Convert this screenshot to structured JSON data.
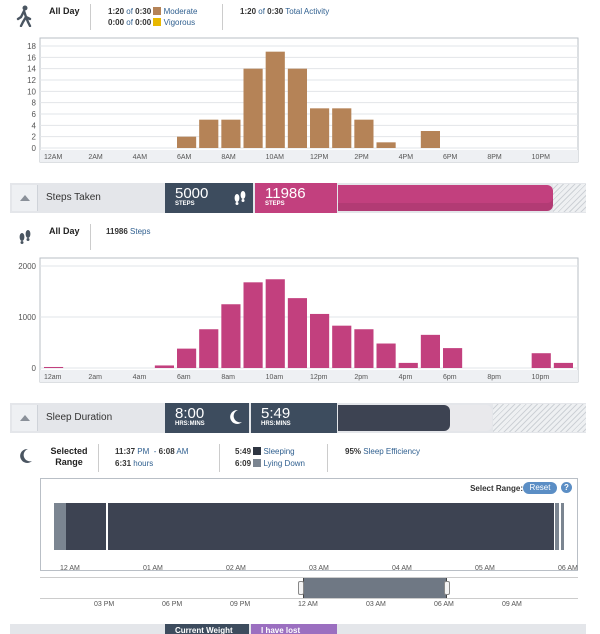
{
  "activity": {
    "label": "All Day",
    "moderate": {
      "value": "1:20",
      "of": "of",
      "goal": "0:30",
      "label": "Moderate",
      "color": "#b58357"
    },
    "vigorous": {
      "value": "0:00",
      "of": "of",
      "goal": "0:00",
      "label": "Vigorous",
      "color": "#e8b800"
    },
    "total": {
      "value": "1:20",
      "of": "of",
      "goal": "0:30",
      "label": "Total Activity"
    }
  },
  "steps_header": {
    "title": "Steps Taken",
    "goal_value": "5000",
    "goal_unit": "STEPS",
    "actual_value": "11986",
    "actual_unit": "STEPS",
    "progress_fraction": 1.0,
    "accent": "#c2407e"
  },
  "steps_summary": {
    "label": "All Day",
    "value": "11986",
    "unit": "Steps"
  },
  "sleep_header": {
    "title": "Sleep Duration",
    "goal_value": "8:00",
    "goal_unit": "HRS:MINS",
    "actual_value": "5:49",
    "actual_unit": "HRS:MINS",
    "progress_fraction": 0.727
  },
  "sleep_summary": {
    "label": "Selected Range",
    "start": "11:37",
    "start_ampm": "PM",
    "dash": "-",
    "end": "6:08",
    "end_ampm": "AM",
    "duration": "6:31",
    "duration_unit": "hours",
    "sleeping_value": "5:49",
    "sleeping_label": "Sleeping",
    "lying_value": "6:09",
    "lying_label": "Lying Down",
    "efficiency_value": "95%",
    "efficiency_label": "Sleep Efficiency"
  },
  "sleep_chart": {
    "select_range_label": "Select Range:",
    "reset_label": "Reset",
    "help_label": "?",
    "x_labels": [
      "12 AM",
      "01 AM",
      "02 AM",
      "03 AM",
      "04 AM",
      "05 AM",
      "06 AM"
    ],
    "nav_labels": [
      "03 PM",
      "06 PM",
      "09 PM",
      "12 AM",
      "03 AM",
      "06 AM",
      "09 AM"
    ]
  },
  "bottom": {
    "current_weight": "Current Weight",
    "lost": "I have lost"
  },
  "chart_data": [
    {
      "type": "bar",
      "title": "",
      "categories": [
        "12AM",
        "1AM",
        "2AM",
        "3AM",
        "4AM",
        "5AM",
        "6AM",
        "7AM",
        "8AM",
        "9AM",
        "10AM",
        "11AM",
        "12PM",
        "1PM",
        "2PM",
        "3PM",
        "4PM",
        "5PM",
        "6PM",
        "7PM",
        "8PM",
        "9PM",
        "10PM",
        "11PM"
      ],
      "x_tick_labels": [
        "12AM",
        "2AM",
        "4AM",
        "6AM",
        "8AM",
        "10AM",
        "12PM",
        "2PM",
        "4PM",
        "6PM",
        "8PM",
        "10PM"
      ],
      "y_ticks": [
        0,
        2,
        4,
        6,
        8,
        10,
        12,
        14,
        16,
        18
      ],
      "values": [
        0,
        0,
        0,
        0,
        0,
        0,
        2,
        5,
        5,
        14,
        17,
        14,
        7,
        7,
        5,
        1,
        0,
        3,
        0,
        0,
        0,
        0,
        0,
        0
      ],
      "ylim": [
        0,
        18
      ],
      "color": "#b58357",
      "grid": true
    },
    {
      "type": "bar",
      "title": "",
      "categories": [
        "12AM",
        "1AM",
        "2AM",
        "3AM",
        "4AM",
        "5AM",
        "6AM",
        "7AM",
        "8AM",
        "9AM",
        "10AM",
        "11AM",
        "12PM",
        "1PM",
        "2PM",
        "3PM",
        "4PM",
        "5PM",
        "6PM",
        "7PM",
        "8PM",
        "9PM",
        "10PM",
        "11PM"
      ],
      "x_tick_labels": [
        "12am",
        "2am",
        "4am",
        "6am",
        "8am",
        "10am",
        "12pm",
        "2pm",
        "4pm",
        "6pm",
        "8pm",
        "10pm"
      ],
      "y_ticks": [
        0,
        1000,
        2000
      ],
      "values": [
        20,
        0,
        0,
        0,
        0,
        50,
        380,
        760,
        1250,
        1680,
        1740,
        1370,
        1060,
        830,
        760,
        480,
        100,
        650,
        390,
        0,
        0,
        0,
        290,
        100
      ],
      "ylim": [
        0,
        2000
      ],
      "color": "#c2407e",
      "grid": true
    }
  ]
}
